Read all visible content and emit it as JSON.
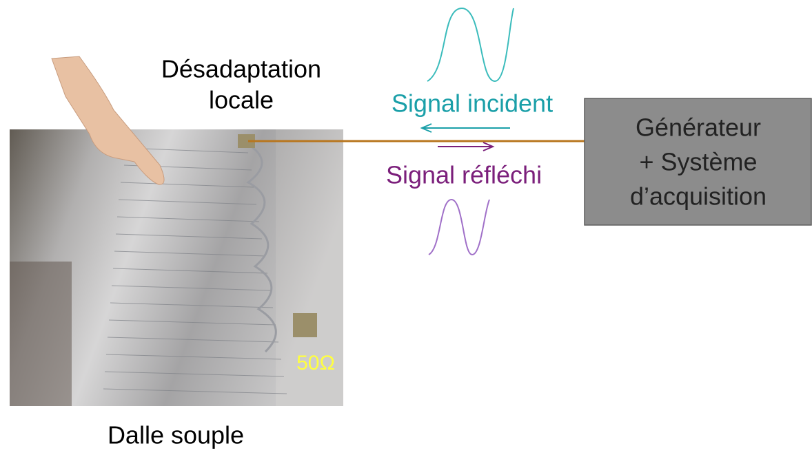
{
  "diagram": {
    "mismatch_label": [
      "Désadaptation",
      "locale"
    ],
    "incident_label": "Signal incident",
    "reflected_label": "Signal réfléchi",
    "generator_label": [
      "Générateur",
      "+ Système",
      "d’acquisition"
    ],
    "termination_label": "50Ω",
    "panel_label": "Dalle souple"
  }
}
